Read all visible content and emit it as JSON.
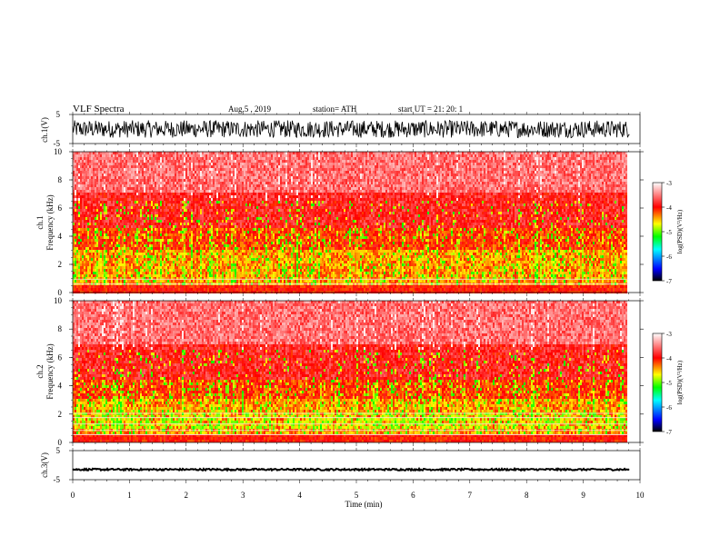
{
  "header": {
    "title": "VLF  Spectra",
    "date": "Aug.5   , 2019",
    "station": "station= ATH",
    "start": "start  UT  =    21: 20: 1"
  },
  "chart_data": [
    {
      "type": "line",
      "name": "ch1-waveform",
      "ylabel": "ch.1(V)",
      "ylim": [
        -5,
        5
      ],
      "yticks": [
        "5",
        "-5"
      ],
      "xlim": [
        0,
        10
      ],
      "amplitude_envelope": [
        -3,
        3
      ]
    },
    {
      "type": "heatmap",
      "name": "ch1-spectrogram",
      "ylabel": "ch.1\nFrequency  (kHz)",
      "ylim": [
        0,
        10
      ],
      "yticks": [
        "0",
        "2",
        "4",
        "6",
        "8",
        "10"
      ],
      "xlim": [
        0,
        9.8
      ],
      "colorbar": {
        "label": "log(PSD)(V²/Hz)",
        "range": [
          -7,
          -3
        ],
        "ticks": [
          "-3",
          "-4",
          "-5",
          "-6",
          "-7"
        ]
      }
    },
    {
      "type": "heatmap",
      "name": "ch2-spectrogram",
      "ylabel": "ch.2\nFrequency  (kHz)",
      "ylim": [
        0,
        10
      ],
      "yticks": [
        "0",
        "2",
        "4",
        "6",
        "8",
        "10"
      ],
      "xlim": [
        0,
        9.8
      ],
      "colorbar": {
        "label": "log(PSD)(V²/Hz)",
        "range": [
          -7,
          -3
        ],
        "ticks": [
          "-3",
          "-4",
          "-5",
          "-6",
          "-7"
        ]
      }
    },
    {
      "type": "line",
      "name": "ch3-waveform",
      "ylabel": "ch.3(V)",
      "ylim": [
        -5,
        5
      ],
      "yticks": [
        "5",
        "-5"
      ],
      "xlim": [
        0,
        10
      ],
      "level": -1.5
    }
  ],
  "xaxis": {
    "label": "Time  (min)",
    "ticks": [
      "0",
      "1",
      "2",
      "3",
      "4",
      "5",
      "6",
      "7",
      "8",
      "9",
      "10"
    ],
    "range": [
      0,
      10
    ]
  },
  "colors": {
    "colormap": [
      "#000000",
      "#0000ff",
      "#00ffff",
      "#00ff00",
      "#ffff00",
      "#ff0000",
      "#ffffff"
    ]
  }
}
